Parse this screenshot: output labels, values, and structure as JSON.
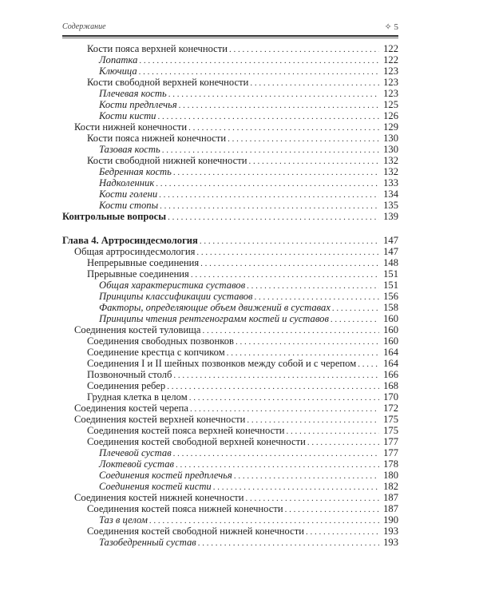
{
  "header": {
    "title": "Содержание",
    "page_marker": "✧ 5"
  },
  "sections": [
    [
      {
        "text": "Кости пояса верхней конечности",
        "page": "122",
        "level": 2,
        "style": "normal"
      },
      {
        "text": "Лопатка",
        "page": "122",
        "level": 3,
        "style": "italic"
      },
      {
        "text": "Ключица",
        "page": "123",
        "level": 3,
        "style": "italic"
      },
      {
        "text": "Кости свободной верхней конечности",
        "page": "123",
        "level": 2,
        "style": "normal"
      },
      {
        "text": "Плечевая кость",
        "page": "123",
        "level": 3,
        "style": "italic"
      },
      {
        "text": "Кости предплечья",
        "page": "125",
        "level": 3,
        "style": "italic"
      },
      {
        "text": "Кости кисти",
        "page": "126",
        "level": 3,
        "style": "italic"
      },
      {
        "text": "Кости нижней конечности",
        "page": "129",
        "level": 1,
        "style": "normal"
      },
      {
        "text": "Кости пояса нижней конечности",
        "page": "130",
        "level": 2,
        "style": "normal"
      },
      {
        "text": "Тазовая кость",
        "page": "130",
        "level": 3,
        "style": "italic"
      },
      {
        "text": "Кости свободной нижней конечности",
        "page": "132",
        "level": 2,
        "style": "normal"
      },
      {
        "text": "Бедренная кость",
        "page": "132",
        "level": 3,
        "style": "italic"
      },
      {
        "text": "Надколенник",
        "page": "133",
        "level": 3,
        "style": "italic"
      },
      {
        "text": "Кости голени",
        "page": "134",
        "level": 3,
        "style": "italic"
      },
      {
        "text": "Кости стопы",
        "page": "135",
        "level": 3,
        "style": "italic"
      },
      {
        "text": "Контрольные вопросы",
        "page": "139",
        "level": 0,
        "style": "bold"
      }
    ],
    [
      {
        "text": "Глава 4. Артросиндесмология",
        "page": "147",
        "level": 0,
        "style": "bold"
      },
      {
        "text": "Общая артросиндесмология",
        "page": "147",
        "level": 1,
        "style": "normal"
      },
      {
        "text": "Непрерывные соединения",
        "page": "148",
        "level": 2,
        "style": "normal"
      },
      {
        "text": "Прерывные соединения",
        "page": "151",
        "level": 2,
        "style": "normal"
      },
      {
        "text": "Общая характеристика суставов",
        "page": "151",
        "level": 3,
        "style": "italic"
      },
      {
        "text": "Принципы классификации суставов",
        "page": "156",
        "level": 3,
        "style": "italic"
      },
      {
        "text": "Факторы, определяющие объем движений в суставах",
        "page": "158",
        "level": 3,
        "style": "italic"
      },
      {
        "text": "Принципы чтения рентгенограмм костей и суставов",
        "page": "160",
        "level": 3,
        "style": "italic"
      },
      {
        "text": "Соединения костей туловища",
        "page": "160",
        "level": 1,
        "style": "normal"
      },
      {
        "text": "Соединения свободных позвонков",
        "page": "160",
        "level": 2,
        "style": "normal"
      },
      {
        "text": "Соединение крестца с копчиком",
        "page": "164",
        "level": 2,
        "style": "normal"
      },
      {
        "text": "Соединения I и II шейных позвонков между собой и с черепом",
        "page": "164",
        "level": 2,
        "style": "normal"
      },
      {
        "text": "Позвоночный столб",
        "page": "166",
        "level": 2,
        "style": "normal"
      },
      {
        "text": "Соединения ребер",
        "page": "168",
        "level": 2,
        "style": "normal"
      },
      {
        "text": "Грудная клетка в целом",
        "page": "170",
        "level": 2,
        "style": "normal"
      },
      {
        "text": "Соединения костей черепа",
        "page": "172",
        "level": 1,
        "style": "normal"
      },
      {
        "text": "Соединения костей верхней конечности",
        "page": "175",
        "level": 1,
        "style": "normal"
      },
      {
        "text": "Соединения костей пояса верхней конечности",
        "page": "175",
        "level": 2,
        "style": "normal"
      },
      {
        "text": "Соединения костей свободной верхней конечности",
        "page": "177",
        "level": 2,
        "style": "normal"
      },
      {
        "text": "Плечевой сустав",
        "page": "177",
        "level": 3,
        "style": "italic"
      },
      {
        "text": "Локтевой сустав",
        "page": "178",
        "level": 3,
        "style": "italic"
      },
      {
        "text": "Соединения костей предплечья",
        "page": "180",
        "level": 3,
        "style": "italic"
      },
      {
        "text": "Соединения костей кисти",
        "page": "182",
        "level": 3,
        "style": "italic"
      },
      {
        "text": "Соединения костей нижней конечности",
        "page": "187",
        "level": 1,
        "style": "normal"
      },
      {
        "text": "Соединения костей пояса нижней конечности",
        "page": "187",
        "level": 2,
        "style": "normal"
      },
      {
        "text": "Таз в целом",
        "page": "190",
        "level": 3,
        "style": "italic"
      },
      {
        "text": "Соединения костей свободной нижней конечности",
        "page": "193",
        "level": 2,
        "style": "normal"
      },
      {
        "text": "Тазобедренный сустав",
        "page": "193",
        "level": 3,
        "style": "italic"
      }
    ]
  ]
}
